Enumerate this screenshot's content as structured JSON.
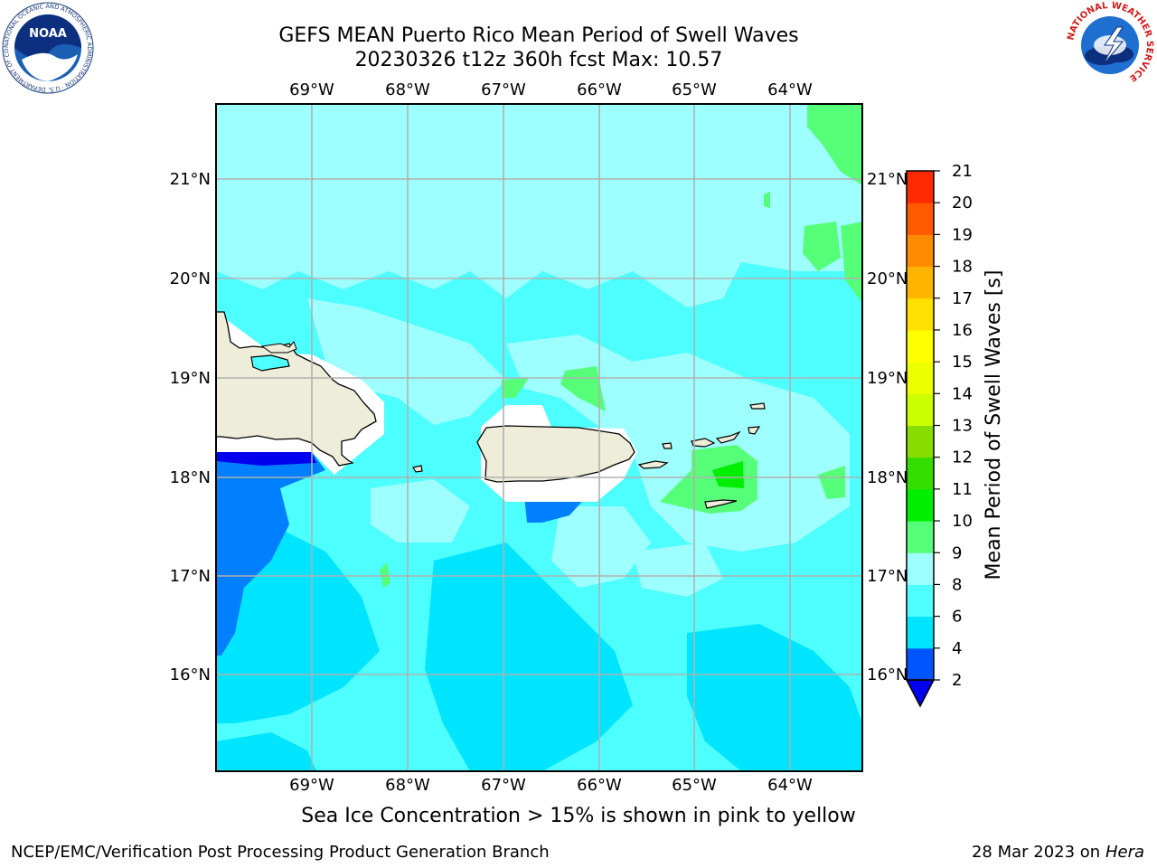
{
  "title": {
    "line1": "GEFS MEAN Puerto Rico Mean Period of Swell Waves",
    "line2": "20230326 t12z 360h fcst   Max: 10.57"
  },
  "map": {
    "lon_ticks": [
      "69°W",
      "68°W",
      "67°W",
      "66°W",
      "65°W",
      "64°W"
    ],
    "lat_ticks": [
      "21°N",
      "20°N",
      "19°N",
      "18°N",
      "17°N",
      "16°N"
    ],
    "lon_range": [
      -70.0,
      -63.25
    ],
    "lat_range": [
      15.0,
      21.75
    ]
  },
  "colorbar": {
    "title": "Mean Period of Swell Waves [s]",
    "levels": [
      "2",
      "4",
      "6",
      "8",
      "9",
      "10",
      "11",
      "12",
      "13",
      "14",
      "15",
      "16",
      "17",
      "18",
      "19",
      "20",
      "21"
    ],
    "colors": [
      "#0055ff",
      "#00e5ff",
      "#4dffff",
      "#9effff",
      "#55ff77",
      "#00ee00",
      "#33dd00",
      "#88dd00",
      "#ccff00",
      "#eeff00",
      "#ffff00",
      "#ffe100",
      "#ffb400",
      "#ff8c00",
      "#ff5a00",
      "#ff2a00",
      "#ff0000"
    ],
    "under_color": "#0000ee"
  },
  "caption": "Sea Ice Concentration > 15% is shown in pink to yellow",
  "footer": {
    "left": "NCEP/EMC/Verification Post Processing Product Generation Branch",
    "date": "28 Mar 2023 on",
    "machine": "Hera"
  },
  "logos": {
    "left": "NOAA",
    "left_ring": "NATIONAL OCEANIC AND ATMOSPHERIC ADMINISTRATION · U.S. DEPARTMENT OF COMMERCE",
    "right_ring": "NATIONAL WEATHER SERVICE"
  }
}
